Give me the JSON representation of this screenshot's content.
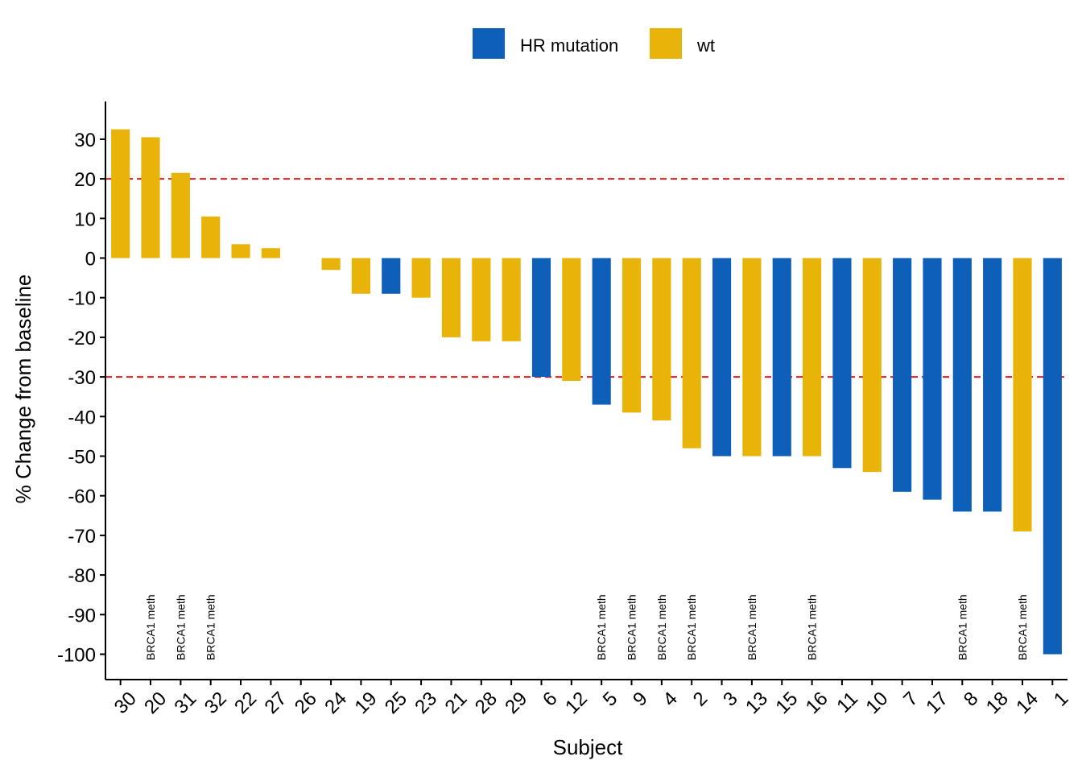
{
  "chart_data": {
    "type": "bar",
    "xlabel": "Subject",
    "ylabel": "% Change from baseline",
    "ylim": [
      -104,
      39
    ],
    "yticks": [
      30,
      20,
      10,
      0,
      -10,
      -20,
      -30,
      -40,
      -50,
      -60,
      -70,
      -80,
      -90,
      -100
    ],
    "reference_lines": [
      20,
      -30
    ],
    "reference_line_color": "#e41a1c",
    "legend": {
      "position": "top",
      "entries": [
        {
          "label": "HR mutation",
          "color": "#0d5fb8"
        },
        {
          "label": "wt",
          "color": "#e8b40a"
        }
      ]
    },
    "annotation_text": "BRCA1 meth",
    "categories": [
      "30",
      "20",
      "31",
      "32",
      "22",
      "27",
      "26",
      "24",
      "19",
      "25",
      "23",
      "21",
      "28",
      "29",
      "6",
      "12",
      "5",
      "9",
      "4",
      "2",
      "3",
      "13",
      "15",
      "16",
      "11",
      "10",
      "7",
      "17",
      "8",
      "18",
      "14",
      "1"
    ],
    "values": [
      32.5,
      30.5,
      21.5,
      10.5,
      3.5,
      2.5,
      0,
      -3,
      -9,
      -9,
      -10,
      -20,
      -21,
      -21,
      -30,
      -31,
      -37,
      -39,
      -41,
      -48,
      -50,
      -50,
      -50,
      -50,
      -53,
      -54,
      -59,
      -61,
      -64,
      -64,
      -69,
      -100
    ],
    "groups": [
      "wt",
      "wt",
      "wt",
      "wt",
      "wt",
      "wt",
      "wt",
      "wt",
      "wt",
      "HR mutation",
      "wt",
      "wt",
      "wt",
      "wt",
      "HR mutation",
      "wt",
      "HR mutation",
      "wt",
      "wt",
      "wt",
      "HR mutation",
      "wt",
      "HR mutation",
      "wt",
      "HR mutation",
      "wt",
      "HR mutation",
      "HR mutation",
      "HR mutation",
      "HR mutation",
      "wt",
      "HR mutation"
    ],
    "annotated_subjects": [
      "20",
      "31",
      "32",
      "5",
      "9",
      "4",
      "2",
      "13",
      "16",
      "8",
      "14"
    ]
  }
}
